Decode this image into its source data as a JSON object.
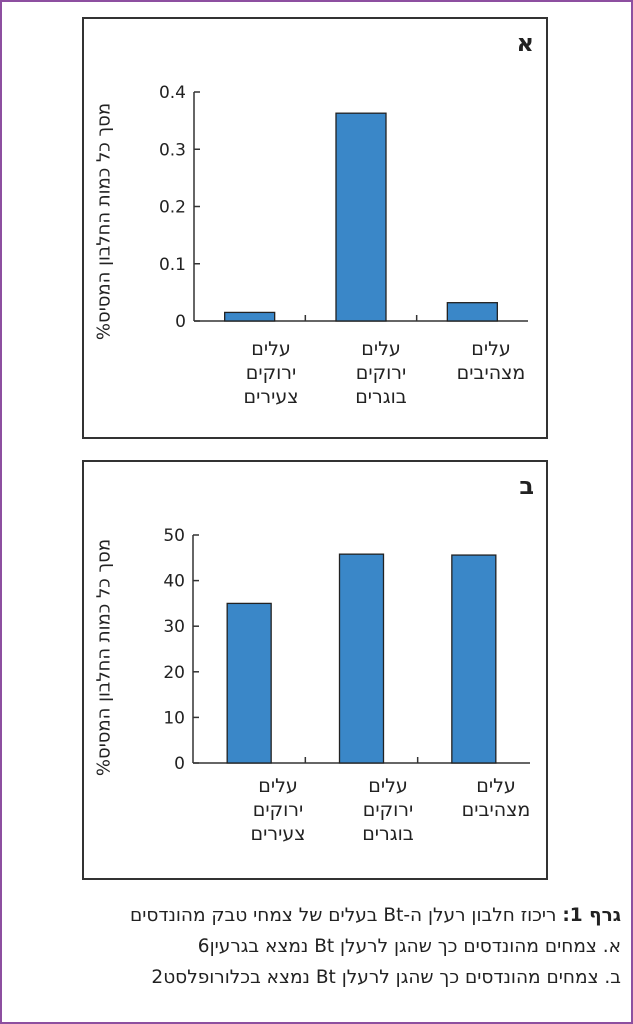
{
  "chart_data": [
    {
      "type": "bar",
      "panel_label": "א",
      "ylabel": "%מסך כל כמות החלבון המסיס",
      "categories": [
        [
          "עלים",
          "ירוקים",
          "צעירים"
        ],
        [
          "עלים",
          "ירוקים",
          "בוגרים"
        ],
        [
          "עלים",
          "מצהיבים"
        ]
      ],
      "values": [
        0.015,
        0.363,
        0.032
      ],
      "ylim": [
        0,
        0.4
      ],
      "yticks": [
        "0",
        "0.1",
        "0.2",
        "0.3",
        "0.4"
      ],
      "color": "#3a87c8"
    },
    {
      "type": "bar",
      "panel_label": "ב",
      "ylabel": "%מסך כל כמות החלבון המסיס",
      "categories": [
        [
          "עלים",
          "ירוקים",
          "צעירים"
        ],
        [
          "עלים",
          "ירוקים",
          "בוגרים"
        ],
        [
          "עלים",
          "מצהיבים"
        ]
      ],
      "values": [
        35,
        45.8,
        45.6
      ],
      "ylim": [
        0,
        50
      ],
      "yticks": [
        "0",
        "10",
        "20",
        "30",
        "40",
        "50"
      ],
      "color": "#3a87c8"
    }
  ],
  "caption": {
    "title": "גרף 1:",
    "line1": "ריכוז חלבון רעלן ה-Bt בעלים של צמחי טבק מהונדסים",
    "line2": "א. צמחים מהונדסים כך שהגן לרעלן Bt נמצא בגרעין",
    "line3": "ב. צמחים מהונדסים כך שהגן לרעלן Bt נמצא בכלורופלסט",
    "ref": "6",
    "ref2": "2"
  }
}
